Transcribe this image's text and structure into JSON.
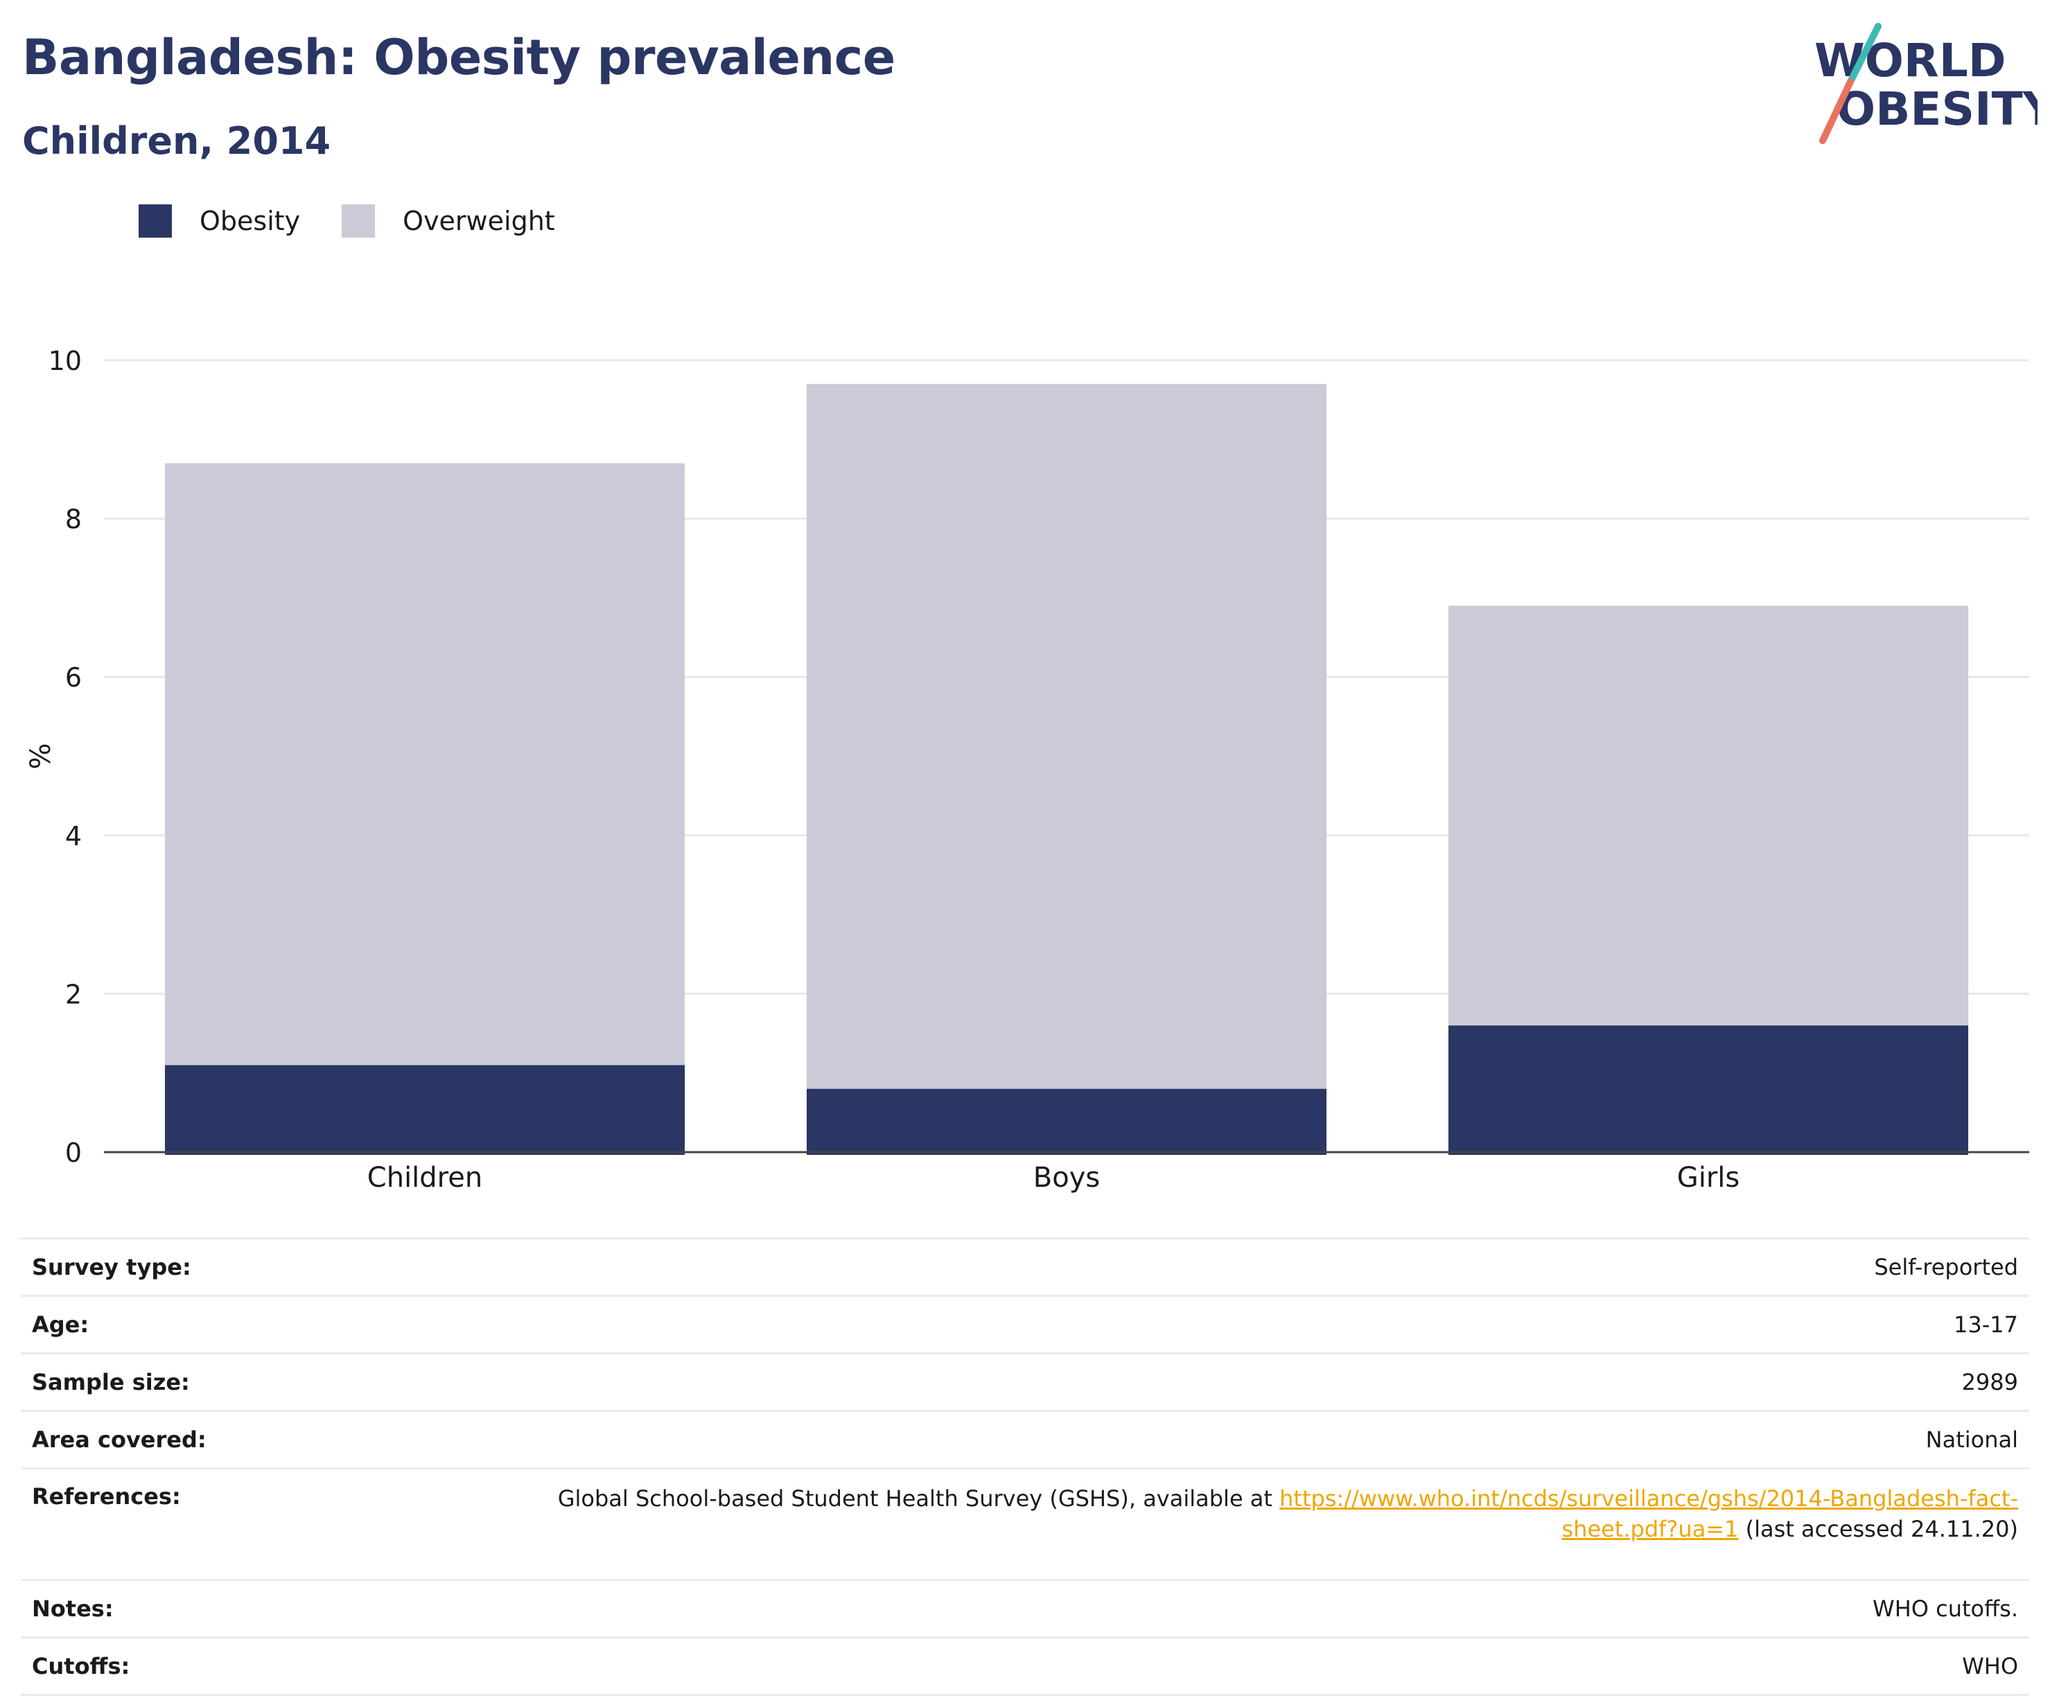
{
  "header": {
    "title": "Bangladesh: Obesity prevalence",
    "subtitle": "Children, 2014",
    "logo_line1": "WORLD",
    "logo_line2": "OBESITY"
  },
  "colors": {
    "obesity": "#2a3664",
    "overweight": "#cacbd6",
    "link": "#f0a500",
    "logo_teal": "#3fb9b5",
    "logo_coral": "#e8735f"
  },
  "chart_data": {
    "type": "bar",
    "stacked": true,
    "categories": [
      "Children",
      "Boys",
      "Girls"
    ],
    "series": [
      {
        "name": "Obesity",
        "values": [
          1.1,
          0.8,
          1.6
        ]
      },
      {
        "name": "Overweight",
        "values": [
          7.6,
          8.9,
          5.3
        ]
      }
    ],
    "ylabel": "%",
    "xlabel": "",
    "ylim": [
      0,
      10
    ],
    "yticks": [
      0,
      2,
      4,
      6,
      8,
      10
    ],
    "grid": true,
    "legend": "top-left"
  },
  "info": {
    "survey_type": {
      "label": "Survey type:",
      "value": "Self-reported"
    },
    "age": {
      "label": "Age:",
      "value": "13-17"
    },
    "sample_size": {
      "label": "Sample size:",
      "value": "2989"
    },
    "area": {
      "label": "Area covered:",
      "value": "National"
    },
    "references": {
      "label": "References:",
      "text_before": "Global School-based Student Health Survey (GSHS), available at ",
      "link": "https://www.who.int/ncds/surveillance/gshs/2014-Bangladesh-fact-sheet.pdf?ua=1",
      "text_after": " (last accessed 24.11.20)"
    },
    "notes": {
      "label": "Notes:",
      "value": "WHO cutoffs."
    },
    "cutoffs": {
      "label": "Cutoffs:",
      "value": "WHO"
    }
  }
}
